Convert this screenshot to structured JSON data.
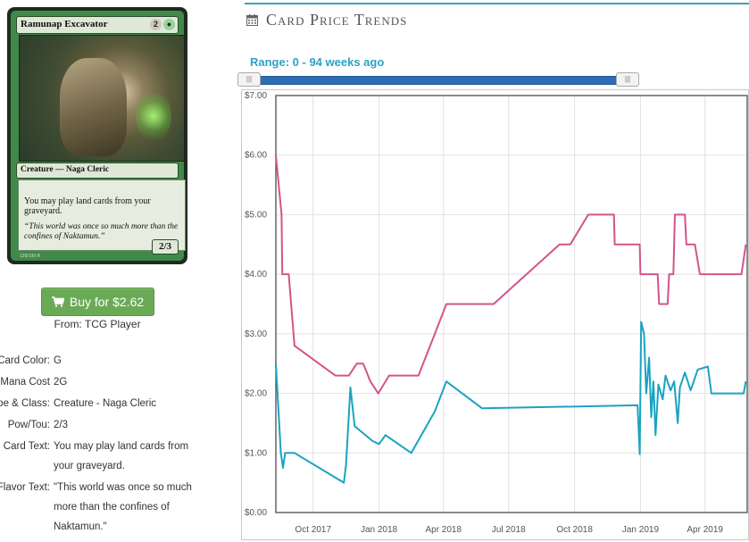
{
  "card": {
    "name": "Ramunap Excavator",
    "mana_cost": [
      "2",
      "G"
    ],
    "type_line": "Creature — Naga Cleric",
    "rules_text": "You may play land cards from your graveyard.",
    "flavor_text": "“This world was once so much more than the confines of Naktamun.”",
    "power_toughness": "2/3",
    "collector": "129/199 R"
  },
  "buy": {
    "label": "Buy for $2.62",
    "source": "From: TCG Player"
  },
  "details": [
    {
      "label": "Card Color:",
      "value": "G"
    },
    {
      "label": "Mana Cost",
      "value": "2G"
    },
    {
      "label": "Type & Class:",
      "value": "Creature - Naga Cleric"
    },
    {
      "label": "Pow/Tou:",
      "value": "2/3"
    },
    {
      "label": "Card Text:",
      "value": "You may play land cards from your graveyard."
    },
    {
      "label": "Flavor Text:",
      "value": "\"This world was once so much more than the confines of Naktamun.\""
    }
  ],
  "trends": {
    "title": "Card Price Trends",
    "range_label": "Range: 0 - 94 weeks ago",
    "slider_min_weeks": 0,
    "slider_max_weeks": 94
  },
  "colors": {
    "accent": "#39a3b7",
    "series_high": "#d4548b",
    "series_low": "#1aa3c2",
    "buy_button": "#6aaa55",
    "slider_track": "#2f6db3"
  },
  "icons": {
    "title_icon": "calendar-icon",
    "buy_icon": "cart-icon"
  },
  "chart_data": {
    "type": "line",
    "title": "",
    "xlabel": "",
    "ylabel": "",
    "ylim": [
      0,
      7
    ],
    "xlim": [
      "2017-08-10",
      "2019-05-30"
    ],
    "y_ticks": [
      "$0.00",
      "$1.00",
      "$2.00",
      "$3.00",
      "$4.00",
      "$5.00",
      "$6.00",
      "$7.00"
    ],
    "x_ticks": [
      {
        "date": "2017-10-01",
        "label": "Oct 2017"
      },
      {
        "date": "2018-01-01",
        "label": "Jan 2018"
      },
      {
        "date": "2018-04-01",
        "label": "Apr 2018"
      },
      {
        "date": "2018-07-01",
        "label": "Jul 2018"
      },
      {
        "date": "2018-10-01",
        "label": "Oct 2018"
      },
      {
        "date": "2019-01-01",
        "label": "Jan 2019"
      },
      {
        "date": "2019-04-01",
        "label": "Apr 2019"
      }
    ],
    "grid": true,
    "series": [
      {
        "color": "#d4548b",
        "points": [
          [
            "2017-08-10",
            6.0
          ],
          [
            "2017-08-18",
            5.0
          ],
          [
            "2017-08-19",
            4.0
          ],
          [
            "2017-08-28",
            4.0
          ],
          [
            "2017-09-05",
            2.8
          ],
          [
            "2017-11-01",
            2.3
          ],
          [
            "2017-11-20",
            2.3
          ],
          [
            "2017-12-01",
            2.5
          ],
          [
            "2017-12-10",
            2.5
          ],
          [
            "2017-12-20",
            2.2
          ],
          [
            "2017-12-31",
            2.0
          ],
          [
            "2018-01-15",
            2.3
          ],
          [
            "2018-02-25",
            2.3
          ],
          [
            "2018-03-20",
            3.0
          ],
          [
            "2018-04-05",
            3.5
          ],
          [
            "2018-06-10",
            3.5
          ],
          [
            "2018-09-10",
            4.5
          ],
          [
            "2018-09-25",
            4.5
          ],
          [
            "2018-10-20",
            5.0
          ],
          [
            "2018-11-25",
            5.0
          ],
          [
            "2018-11-26",
            4.5
          ],
          [
            "2018-12-31",
            4.5
          ],
          [
            "2019-01-01",
            4.0
          ],
          [
            "2019-01-25",
            4.0
          ],
          [
            "2019-01-27",
            3.5
          ],
          [
            "2019-02-08",
            3.5
          ],
          [
            "2019-02-10",
            4.0
          ],
          [
            "2019-02-16",
            4.0
          ],
          [
            "2019-02-18",
            5.0
          ],
          [
            "2019-03-04",
            5.0
          ],
          [
            "2019-03-06",
            4.5
          ],
          [
            "2019-03-18",
            4.5
          ],
          [
            "2019-03-25",
            4.0
          ],
          [
            "2019-05-22",
            4.0
          ],
          [
            "2019-05-28",
            4.5
          ]
        ]
      },
      {
        "color": "#1aa3c2",
        "points": [
          [
            "2017-08-10",
            2.5
          ],
          [
            "2017-08-17",
            1.0
          ],
          [
            "2017-08-20",
            0.75
          ],
          [
            "2017-08-23",
            1.0
          ],
          [
            "2017-09-05",
            1.0
          ],
          [
            "2017-11-13",
            0.5
          ],
          [
            "2017-11-16",
            0.8
          ],
          [
            "2017-11-22",
            2.1
          ],
          [
            "2017-11-28",
            1.45
          ],
          [
            "2017-12-08",
            1.35
          ],
          [
            "2017-12-23",
            1.2
          ],
          [
            "2018-01-01",
            1.15
          ],
          [
            "2018-01-10",
            1.3
          ],
          [
            "2018-02-15",
            1.0
          ],
          [
            "2018-03-20",
            1.7
          ],
          [
            "2018-04-05",
            2.2
          ],
          [
            "2018-05-25",
            1.75
          ],
          [
            "2018-12-28",
            1.8
          ],
          [
            "2018-12-31",
            0.98
          ],
          [
            "2019-01-02",
            3.2
          ],
          [
            "2019-01-06",
            3.0
          ],
          [
            "2019-01-09",
            2.0
          ],
          [
            "2019-01-13",
            2.6
          ],
          [
            "2019-01-16",
            1.6
          ],
          [
            "2019-01-19",
            2.2
          ],
          [
            "2019-01-22",
            1.3
          ],
          [
            "2019-01-26",
            2.15
          ],
          [
            "2019-02-01",
            1.9
          ],
          [
            "2019-02-05",
            2.3
          ],
          [
            "2019-02-12",
            2.05
          ],
          [
            "2019-02-17",
            2.2
          ],
          [
            "2019-02-22",
            1.5
          ],
          [
            "2019-02-25",
            2.1
          ],
          [
            "2019-03-04",
            2.35
          ],
          [
            "2019-03-12",
            2.05
          ],
          [
            "2019-03-22",
            2.4
          ],
          [
            "2019-04-05",
            2.45
          ],
          [
            "2019-04-10",
            2.0
          ],
          [
            "2019-05-25",
            2.0
          ],
          [
            "2019-05-28",
            2.2
          ]
        ]
      }
    ]
  }
}
